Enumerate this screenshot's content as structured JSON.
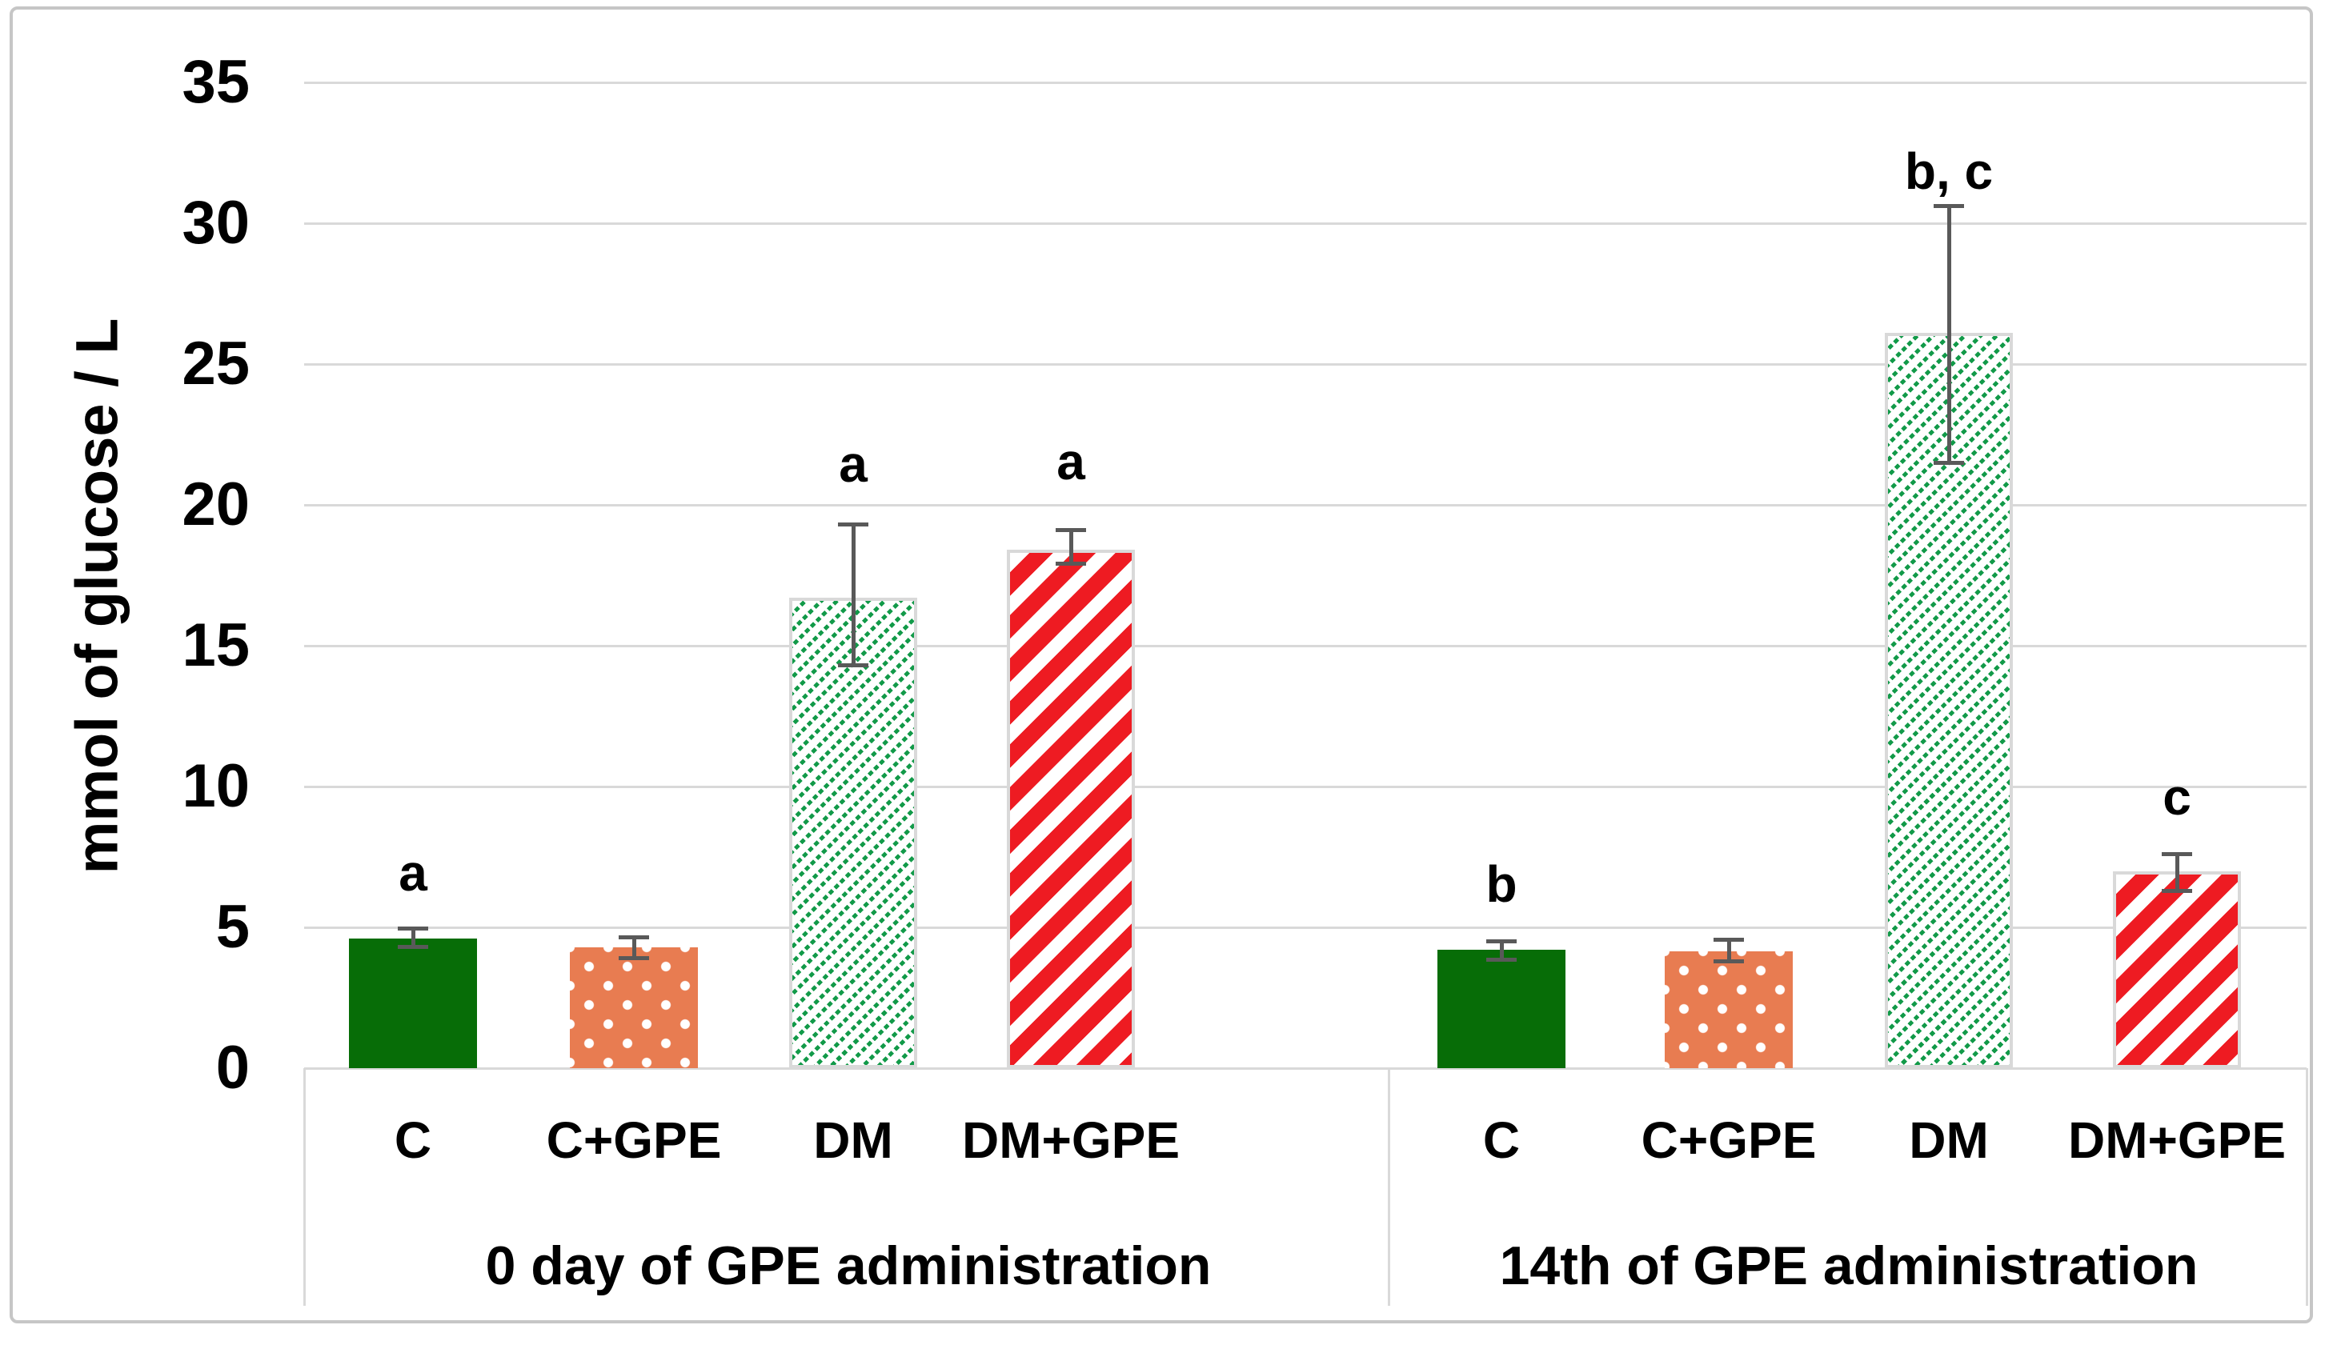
{
  "chart_data": {
    "type": "bar",
    "title": "",
    "xlabel": "",
    "ylabel": "mmol of glucose / L",
    "ylim": [
      0,
      35
    ],
    "ytick_step": 5,
    "yticks": [
      0,
      5,
      10,
      15,
      20,
      25,
      30,
      35
    ],
    "grid": true,
    "legend": false,
    "categories": [
      "C",
      "C+GPE",
      "DM",
      "DM+GPE"
    ],
    "groups": [
      {
        "label": "0 day of GPE administration",
        "values": [
          4.6,
          4.3,
          16.7,
          18.4
        ],
        "err_up": [
          0.35,
          0.35,
          2.6,
          0.7
        ],
        "err_down": [
          0.3,
          0.4,
          2.4,
          0.5
        ],
        "sig_letters": [
          "a",
          "",
          "a",
          "a"
        ],
        "sig_letter_y": [
          6.2,
          null,
          20.7,
          20.8
        ]
      },
      {
        "label": "14th of GPE administration",
        "values": [
          4.2,
          4.15,
          26.1,
          7.0
        ],
        "err_up": [
          0.3,
          0.4,
          4.5,
          0.6
        ],
        "err_down": [
          0.35,
          0.37,
          4.6,
          0.7
        ],
        "sig_letters": [
          "b",
          "",
          "b, c",
          "c"
        ],
        "sig_letter_y": [
          5.8,
          null,
          31.1,
          8.9
        ]
      }
    ],
    "bar_styles": [
      {
        "category": "C",
        "pattern": "solid",
        "color": "#076d07"
      },
      {
        "category": "C+GPE",
        "pattern": "white-dots",
        "color": "#e87c51"
      },
      {
        "category": "DM",
        "pattern": "fine-diagonal-hatch",
        "color": "#129a49"
      },
      {
        "category": "DM+GPE",
        "pattern": "bold-diagonal-hatch",
        "color": "#ee1b22"
      }
    ]
  },
  "theme": {
    "background": "#ffffff",
    "grid_color": "#d9d9d9",
    "bar_outline_color": "#d9d9d9",
    "error_bar_color": "#595959",
    "border_color": "#c6c6c6",
    "text_color": "#000000"
  }
}
